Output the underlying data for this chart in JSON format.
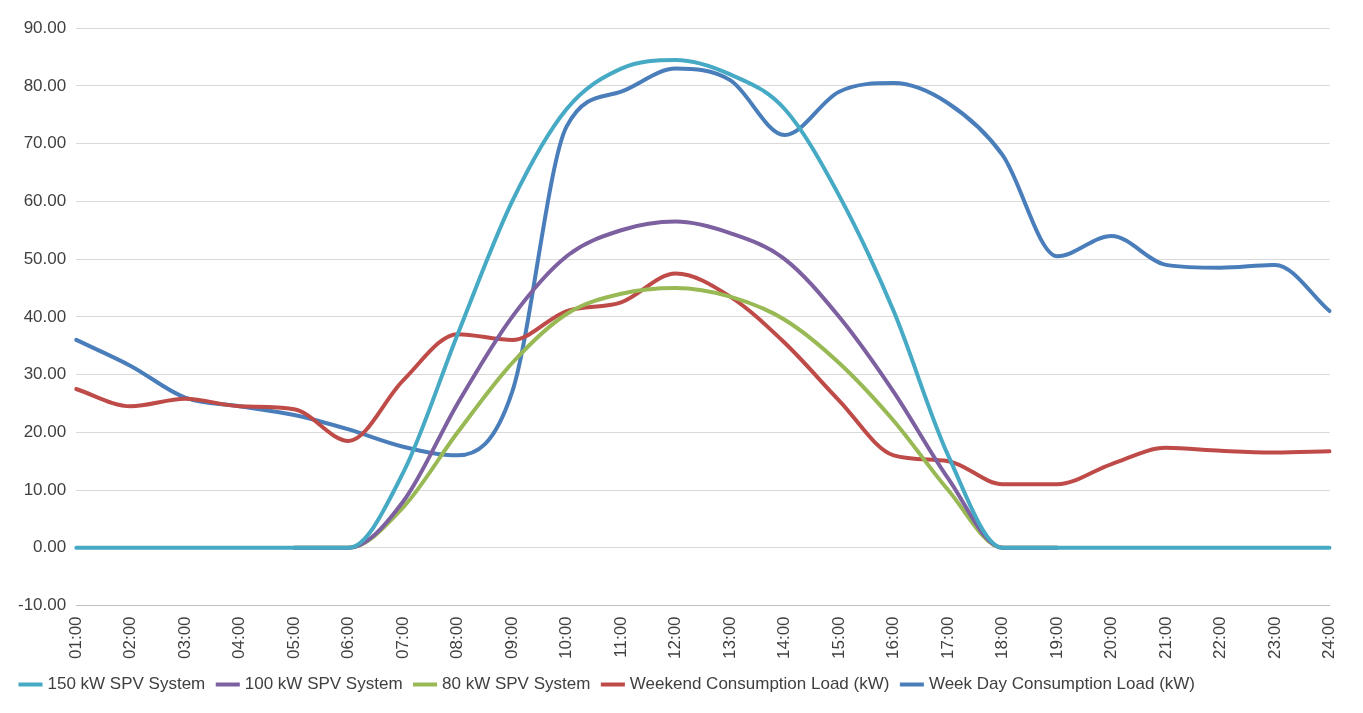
{
  "chart_data": {
    "type": "line",
    "categories": [
      "01:00",
      "02:00",
      "03:00",
      "04:00",
      "05:00",
      "06:00",
      "07:00",
      "08:00",
      "09:00",
      "10:00",
      "11:00",
      "12:00",
      "13:00",
      "14:00",
      "15:00",
      "16:00",
      "17:00",
      "18:00",
      "19:00",
      "20:00",
      "21:00",
      "22:00",
      "23:00",
      "24:00"
    ],
    "series": [
      {
        "name": "Week Day Consumption Load (kW)",
        "color": "#4a7ebb",
        "values": [
          36,
          31.5,
          26,
          24.5,
          23,
          20.5,
          17.5,
          16,
          27,
          73,
          79,
          83,
          81,
          71.5,
          79,
          80.5,
          77,
          68,
          50.5,
          54,
          49,
          48.5,
          49,
          41
        ]
      },
      {
        "name": "Weekend Consumption Load (kW)",
        "color": "#be4b48",
        "values": [
          27.5,
          24.5,
          25.8,
          24.5,
          24,
          18.5,
          29,
          37,
          36,
          41,
          42.5,
          47.5,
          43.5,
          35.5,
          25.5,
          16,
          15,
          11,
          11,
          14.5,
          17.3,
          16.8,
          16.5,
          16.7
        ]
      },
      {
        "name": "80 kW SPV System",
        "color": "#98b954",
        "values": [
          null,
          null,
          null,
          null,
          0,
          0,
          7,
          20,
          32,
          40.5,
          44,
          45,
          43.5,
          39.5,
          32,
          22,
          10,
          0,
          0,
          null,
          null,
          null,
          null,
          null
        ]
      },
      {
        "name": "100 kW SPV System",
        "color": "#7d60a0",
        "values": [
          null,
          null,
          null,
          null,
          0,
          0,
          8,
          25,
          40,
          50.5,
          55,
          56.5,
          54.5,
          50,
          40,
          27,
          12,
          0,
          0,
          null,
          null,
          null,
          null,
          null
        ]
      },
      {
        "name": "150 kW SPV System",
        "color": "#46aac5",
        "values": [
          0,
          0,
          0,
          0,
          0,
          0,
          13,
          37,
          60,
          76,
          83,
          84.5,
          82,
          76,
          61,
          41,
          16,
          0,
          0,
          0,
          0,
          0,
          0,
          0
        ]
      }
    ],
    "ylim": [
      -10,
      90
    ],
    "yticks": [
      {
        "value": -10,
        "label": "-10.00"
      },
      {
        "value": 0,
        "label": "0.00"
      },
      {
        "value": 10,
        "label": "10.00"
      },
      {
        "value": 20,
        "label": "20.00"
      },
      {
        "value": 30,
        "label": "30.00"
      },
      {
        "value": 40,
        "label": "40.00"
      },
      {
        "value": 50,
        "label": "50.00"
      },
      {
        "value": 60,
        "label": "60.00"
      },
      {
        "value": 70,
        "label": "70.00"
      },
      {
        "value": 80,
        "label": "80.00"
      },
      {
        "value": 90,
        "label": "90.00"
      }
    ],
    "grid": "y",
    "legend": "bottom",
    "marker": "none",
    "line_style": "solid"
  }
}
